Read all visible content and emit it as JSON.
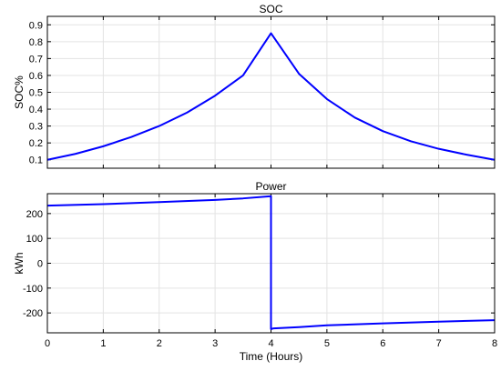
{
  "chart_data": [
    {
      "type": "line",
      "title": "SOC",
      "xlabel": "",
      "ylabel": "SOC%",
      "xlim": [
        0,
        8
      ],
      "ylim": [
        0.05,
        0.95
      ],
      "x_ticks": [
        0,
        1,
        2,
        3,
        4,
        5,
        6,
        7,
        8
      ],
      "x_tick_labels_visible": false,
      "y_ticks": [
        0.1,
        0.2,
        0.3,
        0.4,
        0.5,
        0.6,
        0.7,
        0.8,
        0.9
      ],
      "y_tick_labels": [
        "0.1",
        "0.2",
        "0.3",
        "0.4",
        "0.5",
        "0.6",
        "0.7",
        "0.8",
        "0.9"
      ],
      "grid": true,
      "line_color": "#0000ff",
      "series": [
        {
          "x": [
            0,
            0.5,
            1,
            1.5,
            2,
            2.5,
            3,
            3.5,
            4,
            4.5,
            5,
            5.5,
            6,
            6.5,
            7,
            7.5,
            8
          ],
          "y": [
            0.1,
            0.135,
            0.18,
            0.235,
            0.3,
            0.38,
            0.48,
            0.6,
            0.85,
            0.61,
            0.46,
            0.35,
            0.27,
            0.21,
            0.165,
            0.13,
            0.1
          ]
        }
      ]
    },
    {
      "type": "line",
      "title": "Power",
      "xlabel": "Time (Hours)",
      "ylabel": "kWh",
      "xlim": [
        0,
        8
      ],
      "ylim": [
        -280,
        280
      ],
      "x_ticks": [
        0,
        1,
        2,
        3,
        4,
        5,
        6,
        7,
        8
      ],
      "x_tick_labels": [
        "0",
        "1",
        "2",
        "3",
        "4",
        "5",
        "6",
        "7",
        "8"
      ],
      "y_ticks": [
        -200,
        -100,
        0,
        100,
        200
      ],
      "y_tick_labels": [
        "-200",
        "-100",
        "0",
        "100",
        "200"
      ],
      "grid": true,
      "line_color": "#0000ff",
      "series": [
        {
          "x": [
            0,
            1,
            2,
            3,
            3.5,
            4,
            4,
            4.05,
            4.5,
            5,
            6,
            7,
            8
          ],
          "y": [
            232,
            238,
            246,
            255,
            261,
            270,
            -265,
            -262,
            -257,
            -250,
            -242,
            -235,
            -229
          ]
        }
      ]
    }
  ]
}
